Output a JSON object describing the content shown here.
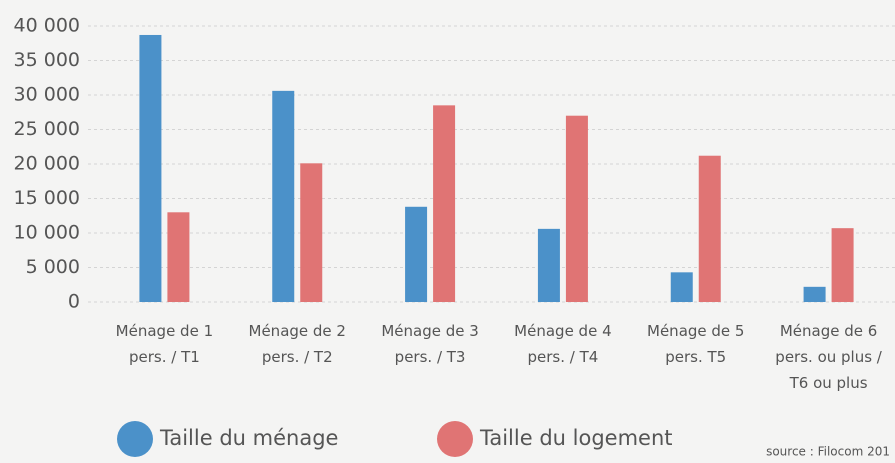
{
  "chart_data": {
    "type": "bar",
    "categories": [
      "Ménage de 1 pers. / T1",
      "Ménage de 2 pers. / T2",
      "Ménage de 3 pers. / T3",
      "Ménage de 4 pers. / T4",
      "Ménage de 5 pers. T5",
      "Ménage de 6 pers. ou plus / T6 ou plus"
    ],
    "series": [
      {
        "name": "Taille du ménage",
        "color": "#4b91c9",
        "values": [
          38700,
          30600,
          13800,
          10600,
          4300,
          2200
        ]
      },
      {
        "name": "Taille du logement",
        "color": "#e07474",
        "values": [
          13000,
          20100,
          28500,
          27000,
          21200,
          10700
        ]
      }
    ],
    "ylim": [
      0,
      40000
    ],
    "yticks": [
      0,
      {
        "value": 5000,
        "label": "5 000"
      },
      {
        "value": 10000,
        "label": "10 000"
      },
      {
        "value": 15000,
        "label": "15 000"
      },
      {
        "value": 20000,
        "label": "20 000"
      },
      {
        "value": 25000,
        "label": "25 000"
      },
      {
        "value": 30000,
        "label": "30 000"
      },
      {
        "value": 35000,
        "label": "35 000"
      },
      {
        "value": 40000,
        "label": "40 000"
      }
    ],
    "grid": true,
    "legend": "bottom",
    "source": "source : Filocom 201"
  }
}
